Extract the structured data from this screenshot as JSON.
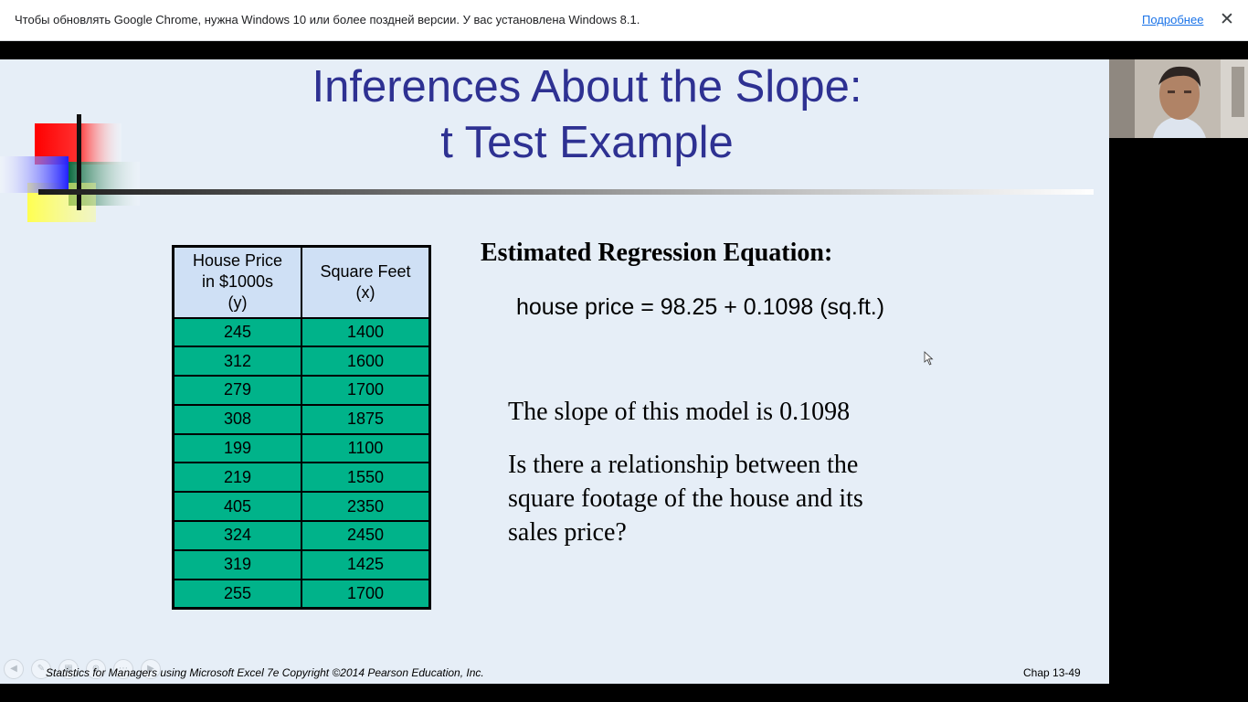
{
  "infobar": {
    "message": "Чтобы обновлять Google Chrome, нужна Windows 10 или более поздней версии. У вас установлена Windows 8.1.",
    "link": "Подробнее",
    "close": "✕"
  },
  "slide": {
    "title_line1": "Inferences About the Slope:",
    "title_line2": "t Test Example",
    "table": {
      "headers": [
        "House Price in $1000s (y)",
        "Square Feet (x)"
      ],
      "header_lines": [
        [
          "House Price",
          "in $1000s",
          "(y)"
        ],
        [
          "Square Feet",
          "(x)"
        ]
      ],
      "rows": [
        [
          "245",
          "1400"
        ],
        [
          "312",
          "1600"
        ],
        [
          "279",
          "1700"
        ],
        [
          "308",
          "1875"
        ],
        [
          "199",
          "1100"
        ],
        [
          "219",
          "1550"
        ],
        [
          "405",
          "2350"
        ],
        [
          "324",
          "2450"
        ],
        [
          "319",
          "1425"
        ],
        [
          "255",
          "1700"
        ]
      ]
    },
    "equation_heading": "Estimated Regression Equation:",
    "equation": "house price = 98.25 + 0.1098 (sq.ft.)",
    "slope_text": "The slope of this model is 0.1098",
    "question": "Is there a relationship between the square footage of the house and its sales price?",
    "footer": "Statistics for Managers using Microsoft Excel 7e Copyright ©2014 Pearson Education, Inc.",
    "chap": "Chap 13-49"
  },
  "colors": {
    "title": "#2e3192",
    "table_header": "#cfe0f5",
    "table_cell": "#00b38a",
    "slide_bg": "#e6eef7"
  }
}
